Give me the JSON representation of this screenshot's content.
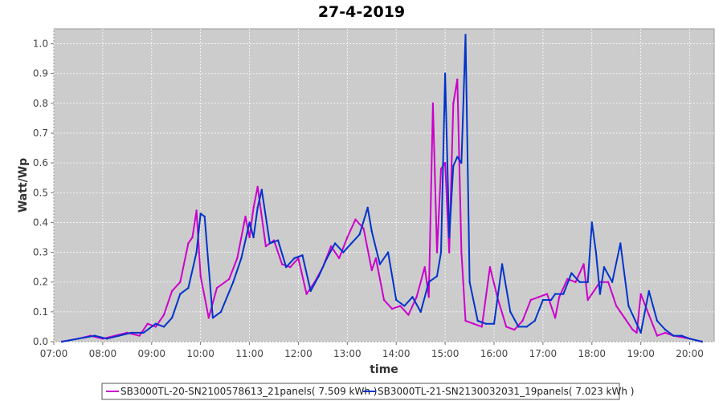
{
  "chart_data": {
    "type": "line",
    "title": "27-4-2019",
    "xlabel": "time",
    "ylabel": "Watt/Wp",
    "xlim": [
      "07:00",
      "20:30"
    ],
    "ylim": [
      0,
      1.05
    ],
    "x_ticks": [
      "07:00",
      "08:00",
      "09:00",
      "10:00",
      "11:00",
      "12:00",
      "13:00",
      "14:00",
      "15:00",
      "16:00",
      "17:00",
      "18:00",
      "19:00",
      "20:00"
    ],
    "y_ticks": [
      "0.0",
      "0.1",
      "0.2",
      "0.3",
      "0.4",
      "0.5",
      "0.6",
      "0.7",
      "0.8",
      "0.9",
      "1.0"
    ],
    "grid": true,
    "legend_position": "bottom",
    "series": [
      {
        "name": "SB3000TL-20-SN2100578613_21panels( 7.509 kWh )",
        "color": "#cc00cc",
        "x": [
          "07:10",
          "07:30",
          "07:45",
          "08:00",
          "08:15",
          "08:30",
          "08:45",
          "08:55",
          "09:05",
          "09:15",
          "09:25",
          "09:35",
          "09:45",
          "09:50",
          "09:55",
          "10:00",
          "10:10",
          "10:20",
          "10:35",
          "10:45",
          "10:55",
          "11:00",
          "11:05",
          "11:10",
          "11:20",
          "11:30",
          "11:40",
          "11:50",
          "12:00",
          "12:10",
          "12:20",
          "12:30",
          "12:40",
          "12:50",
          "13:00",
          "13:10",
          "13:20",
          "13:30",
          "13:35",
          "13:45",
          "13:55",
          "14:05",
          "14:15",
          "14:25",
          "14:35",
          "14:40",
          "14:45",
          "14:50",
          "14:55",
          "15:00",
          "15:05",
          "15:10",
          "15:15",
          "15:20",
          "15:25",
          "15:35",
          "15:45",
          "15:55",
          "16:05",
          "16:15",
          "16:25",
          "16:35",
          "16:45",
          "16:55",
          "17:05",
          "17:15",
          "17:20",
          "17:30",
          "17:40",
          "17:50",
          "17:55",
          "18:00",
          "18:10",
          "18:20",
          "18:30",
          "18:40",
          "18:50",
          "18:55",
          "19:00",
          "19:10",
          "19:20",
          "19:30",
          "19:40",
          "20:00",
          "20:15"
        ],
        "values": [
          0.0,
          0.01,
          0.02,
          0.01,
          0.02,
          0.03,
          0.02,
          0.06,
          0.05,
          0.09,
          0.17,
          0.2,
          0.33,
          0.35,
          0.44,
          0.22,
          0.08,
          0.18,
          0.21,
          0.28,
          0.42,
          0.35,
          0.45,
          0.52,
          0.32,
          0.34,
          0.26,
          0.25,
          0.28,
          0.16,
          0.2,
          0.25,
          0.32,
          0.28,
          0.35,
          0.41,
          0.38,
          0.24,
          0.28,
          0.14,
          0.11,
          0.12,
          0.09,
          0.15,
          0.25,
          0.15,
          0.8,
          0.3,
          0.58,
          0.6,
          0.3,
          0.8,
          0.88,
          0.3,
          0.07,
          0.06,
          0.05,
          0.25,
          0.14,
          0.05,
          0.04,
          0.07,
          0.14,
          0.15,
          0.16,
          0.08,
          0.15,
          0.21,
          0.2,
          0.26,
          0.14,
          0.16,
          0.2,
          0.2,
          0.12,
          0.08,
          0.04,
          0.03,
          0.16,
          0.09,
          0.02,
          0.03,
          0.02,
          0.01,
          0.0
        ]
      },
      {
        "name": "SB3000TL-21-SN2130032031_19panels( 7.023 kWh )",
        "color": "#0033cc",
        "x": [
          "07:10",
          "07:30",
          "07:50",
          "08:05",
          "08:20",
          "08:35",
          "08:50",
          "09:05",
          "09:15",
          "09:25",
          "09:35",
          "09:45",
          "09:55",
          "10:00",
          "10:05",
          "10:15",
          "10:25",
          "10:40",
          "10:50",
          "11:00",
          "11:05",
          "11:10",
          "11:15",
          "11:25",
          "11:35",
          "11:45",
          "11:55",
          "12:05",
          "12:15",
          "12:25",
          "12:35",
          "12:45",
          "12:55",
          "13:05",
          "13:15",
          "13:25",
          "13:30",
          "13:40",
          "13:50",
          "14:00",
          "14:10",
          "14:20",
          "14:30",
          "14:40",
          "14:50",
          "14:55",
          "15:00",
          "15:05",
          "15:10",
          "15:15",
          "15:20",
          "15:25",
          "15:30",
          "15:40",
          "15:50",
          "16:00",
          "16:10",
          "16:20",
          "16:30",
          "16:40",
          "16:50",
          "17:00",
          "17:10",
          "17:15",
          "17:25",
          "17:35",
          "17:45",
          "17:55",
          "18:00",
          "18:05",
          "18:10",
          "18:15",
          "18:25",
          "18:35",
          "18:45",
          "18:55",
          "19:00",
          "19:10",
          "19:20",
          "19:30",
          "19:40",
          "19:50",
          "20:00",
          "20:15"
        ],
        "values": [
          0.0,
          0.01,
          0.02,
          0.01,
          0.02,
          0.03,
          0.03,
          0.06,
          0.05,
          0.08,
          0.16,
          0.18,
          0.3,
          0.43,
          0.42,
          0.08,
          0.1,
          0.2,
          0.28,
          0.4,
          0.35,
          0.45,
          0.51,
          0.33,
          0.34,
          0.25,
          0.28,
          0.29,
          0.17,
          0.22,
          0.28,
          0.33,
          0.3,
          0.33,
          0.36,
          0.45,
          0.37,
          0.26,
          0.3,
          0.14,
          0.12,
          0.15,
          0.1,
          0.2,
          0.22,
          0.3,
          0.9,
          0.35,
          0.59,
          0.62,
          0.6,
          1.03,
          0.2,
          0.07,
          0.06,
          0.06,
          0.26,
          0.1,
          0.05,
          0.05,
          0.07,
          0.14,
          0.14,
          0.16,
          0.16,
          0.23,
          0.2,
          0.2,
          0.4,
          0.3,
          0.16,
          0.25,
          0.2,
          0.33,
          0.12,
          0.06,
          0.03,
          0.17,
          0.07,
          0.04,
          0.02,
          0.02,
          0.01,
          0.0
        ]
      }
    ]
  }
}
